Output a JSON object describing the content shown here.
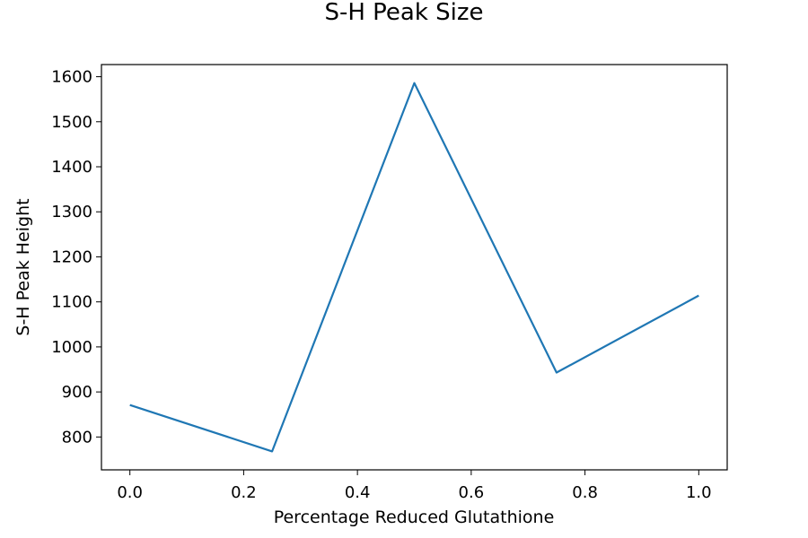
{
  "chart_data": {
    "type": "line",
    "title": "S-H Peak Size",
    "xlabel": "Percentage Reduced Glutathione",
    "ylabel": "S-H Peak Height",
    "x": [
      0.0,
      0.25,
      0.5,
      0.75,
      1.0
    ],
    "series": [
      {
        "values": [
          871,
          768,
          1586,
          943,
          1114
        ],
        "color": "#1f77b4"
      }
    ],
    "xlim": [
      -0.05,
      1.05
    ],
    "ylim": [
      727,
      1627
    ],
    "xticks": [
      0.0,
      0.2,
      0.4,
      0.6,
      0.8,
      1.0
    ],
    "xtick_labels": [
      "0.0",
      "0.2",
      "0.4",
      "0.6",
      "0.8",
      "1.0"
    ],
    "yticks": [
      800,
      900,
      1000,
      1100,
      1200,
      1300,
      1400,
      1500,
      1600
    ],
    "ytick_labels": [
      "800",
      "900",
      "1000",
      "1100",
      "1200",
      "1300",
      "1400",
      "1500",
      "1600"
    ],
    "grid": false,
    "legend": "none"
  }
}
